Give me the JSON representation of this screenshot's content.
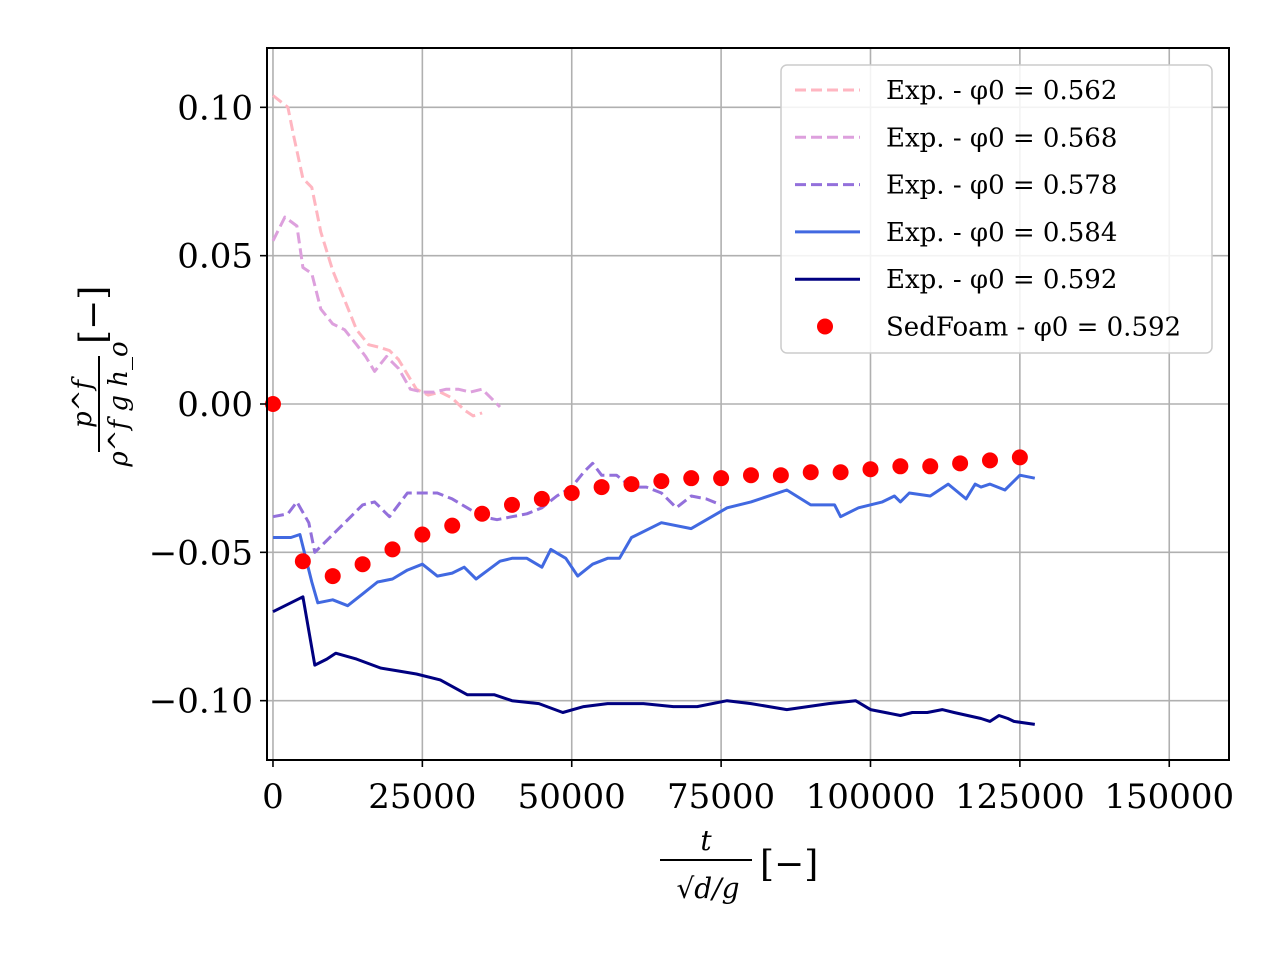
{
  "chart_data": {
    "type": "line",
    "title": "",
    "xlabel": {
      "numerator": "t",
      "denominator": "√d/g",
      "unit": "[−]"
    },
    "ylabel": {
      "numerator": "p^f",
      "denominator": "ρ^f g h_o",
      "unit": "[−]"
    },
    "xlim": [
      -1000,
      160000
    ],
    "ylim": [
      -0.12,
      0.12
    ],
    "x_ticks": [
      0,
      25000,
      50000,
      75000,
      100000,
      125000,
      150000
    ],
    "x_tick_labels": [
      "0",
      "25000",
      "50000",
      "75000",
      "100000",
      "125000",
      "150000"
    ],
    "y_ticks": [
      0.1,
      0.05,
      0.0,
      -0.05,
      -0.1
    ],
    "y_tick_labels": [
      "0.10",
      "0.05",
      "0.00",
      "−0.05",
      "−0.10"
    ],
    "grid": true,
    "legend_position": "top-right",
    "series": [
      {
        "name": "Exp. - φ0 = 0.562",
        "color": "#ffb6c1",
        "style": "dashed",
        "x": [
          0,
          2500,
          3500,
          5000,
          6500,
          8000,
          10000,
          12000,
          14000,
          16000,
          18000,
          19500,
          21000,
          22500,
          24000,
          26000,
          28000,
          30000,
          32000,
          33500,
          35000
        ],
        "y": [
          0.104,
          0.1,
          0.09,
          0.076,
          0.073,
          0.058,
          0.045,
          0.035,
          0.025,
          0.02,
          0.019,
          0.018,
          0.015,
          0.01,
          0.005,
          0.003,
          0.004,
          0.002,
          -0.002,
          -0.004,
          -0.003
        ]
      },
      {
        "name": "Exp. - φ0 = 0.568",
        "color": "#dda0dd",
        "style": "dashed",
        "x": [
          0,
          2000,
          4000,
          5000,
          6500,
          8000,
          10000,
          12000,
          14000,
          15500,
          17000,
          19000,
          21000,
          23000,
          25000,
          27000,
          29000,
          31000,
          33000,
          35000,
          36500,
          38000
        ],
        "y": [
          0.055,
          0.063,
          0.06,
          0.046,
          0.044,
          0.032,
          0.027,
          0.025,
          0.02,
          0.016,
          0.011,
          0.016,
          0.012,
          0.005,
          0.004,
          0.004,
          0.005,
          0.005,
          0.004,
          0.005,
          0.002,
          -0.001
        ]
      },
      {
        "name": "Exp. - φ0 = 0.578",
        "color": "#9370db",
        "style": "dashed",
        "x": [
          0,
          2500,
          4000,
          6000,
          7000,
          9000,
          12000,
          15000,
          17000,
          19500,
          22500,
          24500,
          27500,
          30000,
          32500,
          35000,
          37500,
          40000,
          42500,
          45000,
          47500,
          50000,
          52000,
          53500,
          55000,
          57500,
          60000,
          62500,
          65000,
          67500,
          70000,
          72500,
          75000
        ],
        "y": [
          -0.038,
          -0.037,
          -0.033,
          -0.04,
          -0.05,
          -0.046,
          -0.04,
          -0.034,
          -0.033,
          -0.038,
          -0.03,
          -0.03,
          -0.03,
          -0.032,
          -0.035,
          -0.038,
          -0.039,
          -0.038,
          -0.037,
          -0.035,
          -0.031,
          -0.028,
          -0.023,
          -0.02,
          -0.024,
          -0.024,
          -0.028,
          -0.028,
          -0.03,
          -0.035,
          -0.031,
          -0.032,
          -0.034
        ]
      },
      {
        "name": "Exp. - φ0 = 0.584",
        "color": "#4169e1",
        "style": "solid",
        "x": [
          0,
          3000,
          4500,
          6500,
          7500,
          10000,
          12500,
          15000,
          17500,
          20000,
          22500,
          25000,
          27500,
          30000,
          32000,
          34000,
          36000,
          38000,
          40000,
          42500,
          45000,
          46500,
          49000,
          51000,
          53500,
          56000,
          58000,
          60000,
          65000,
          70000,
          76000,
          80000,
          86000,
          90000,
          94000,
          95000,
          98000,
          102000,
          104000,
          105000,
          106500,
          110000,
          113000,
          116000,
          117500,
          118500,
          120000,
          122500,
          125000,
          127500
        ],
        "y": [
          -0.045,
          -0.045,
          -0.044,
          -0.06,
          -0.067,
          -0.066,
          -0.068,
          -0.064,
          -0.06,
          -0.059,
          -0.056,
          -0.054,
          -0.058,
          -0.057,
          -0.055,
          -0.059,
          -0.056,
          -0.053,
          -0.052,
          -0.052,
          -0.055,
          -0.049,
          -0.052,
          -0.058,
          -0.054,
          -0.052,
          -0.052,
          -0.045,
          -0.04,
          -0.042,
          -0.035,
          -0.033,
          -0.029,
          -0.034,
          -0.034,
          -0.038,
          -0.035,
          -0.033,
          -0.031,
          -0.033,
          -0.03,
          -0.031,
          -0.027,
          -0.032,
          -0.027,
          -0.028,
          -0.027,
          -0.029,
          -0.024,
          -0.025
        ]
      },
      {
        "name": "Exp. - φ0 = 0.592",
        "color": "#000080",
        "style": "solid",
        "x": [
          0,
          5000,
          7000,
          9000,
          10500,
          14000,
          18000,
          21000,
          24000,
          28000,
          32500,
          37000,
          40000,
          44500,
          48500,
          52000,
          56000,
          62000,
          67000,
          71000,
          76000,
          80000,
          86000,
          93000,
          97500,
          100000,
          105000,
          107000,
          109500,
          112000,
          114000,
          118500,
          120000,
          121500,
          123000,
          124000,
          127500
        ],
        "y": [
          -0.07,
          -0.065,
          -0.088,
          -0.086,
          -0.084,
          -0.086,
          -0.089,
          -0.09,
          -0.091,
          -0.093,
          -0.098,
          -0.098,
          -0.1,
          -0.101,
          -0.104,
          -0.102,
          -0.101,
          -0.101,
          -0.102,
          -0.102,
          -0.1,
          -0.101,
          -0.103,
          -0.101,
          -0.1,
          -0.103,
          -0.105,
          -0.104,
          -0.104,
          -0.103,
          -0.104,
          -0.106,
          -0.107,
          -0.105,
          -0.106,
          -0.107,
          -0.108
        ]
      },
      {
        "name": "SedFoam - φ0 = 0.592",
        "color": "#ff0000",
        "style": "markers",
        "x": [
          0,
          5000,
          10000,
          15000,
          20000,
          25000,
          30000,
          35000,
          40000,
          45000,
          50000,
          55000,
          60000,
          65000,
          70000,
          75000,
          80000,
          85000,
          90000,
          95000,
          100000,
          105000,
          110000,
          115000,
          120000,
          125000
        ],
        "y": [
          0.0,
          -0.053,
          -0.058,
          -0.054,
          -0.049,
          -0.044,
          -0.041,
          -0.037,
          -0.034,
          -0.032,
          -0.03,
          -0.028,
          -0.027,
          -0.026,
          -0.025,
          -0.025,
          -0.024,
          -0.024,
          -0.023,
          -0.023,
          -0.022,
          -0.021,
          -0.021,
          -0.02,
          -0.019,
          -0.018
        ]
      }
    ]
  }
}
